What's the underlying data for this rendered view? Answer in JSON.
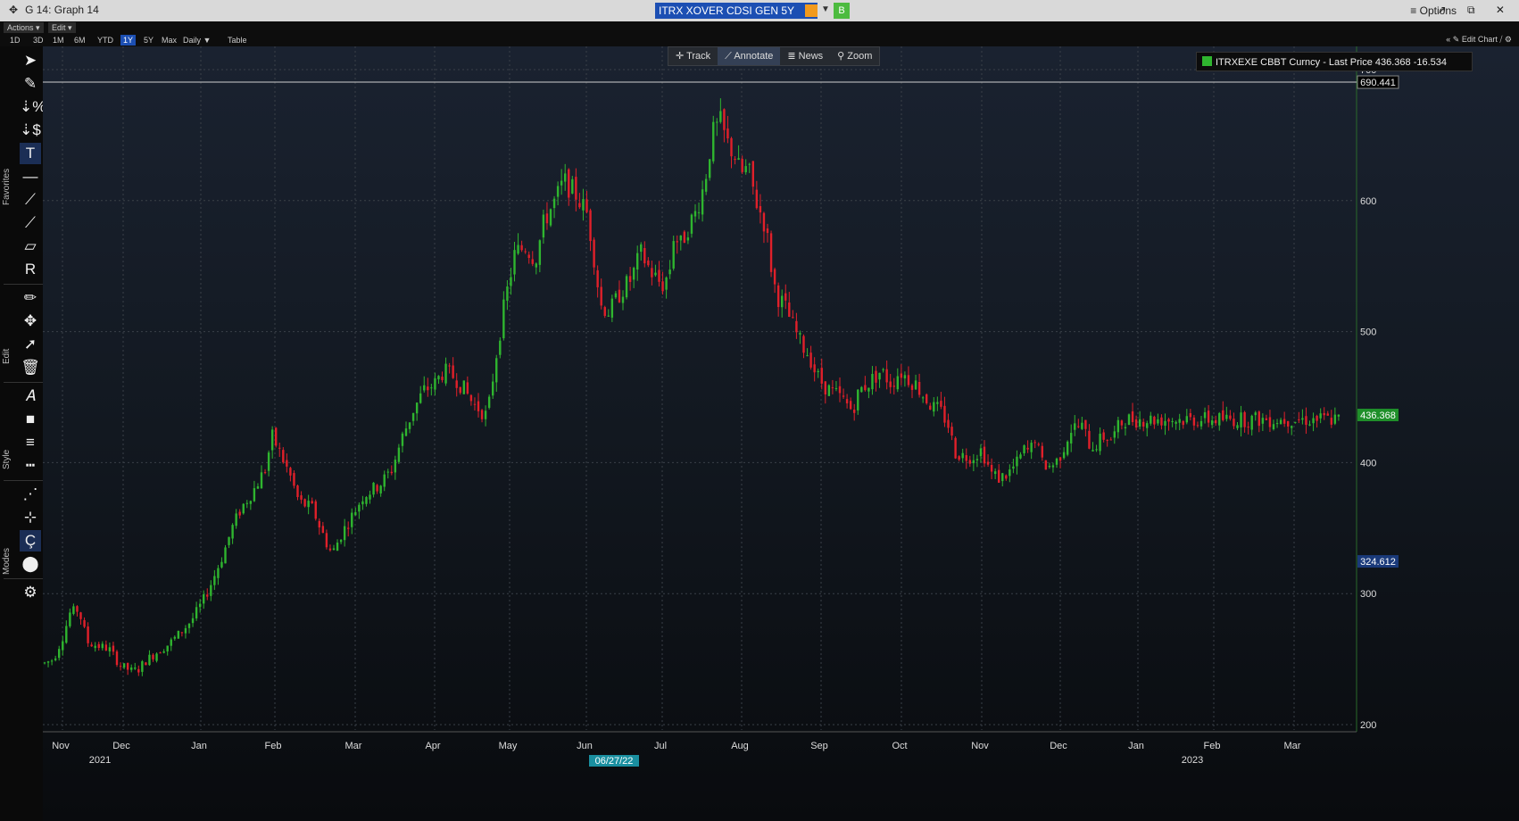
{
  "window": {
    "title": "G 14: Graph 14",
    "ticker": "ITRX XOVER CDSI GEN 5Y Corp",
    "b_label": "B",
    "options_label": "Options"
  },
  "menu": {
    "actions": "Actions ▾",
    "edit": "Edit ▾"
  },
  "timeframes": [
    "1D",
    "3D",
    "1M",
    "6M",
    "YTD",
    "1Y",
    "5Y",
    "Max",
    "Daily ▼",
    "Table"
  ],
  "timeframe_active": "1Y",
  "edit_chart_label": "Edit Chart",
  "chart_tools": {
    "track": "Track",
    "annotate": "Annotate",
    "news": "News",
    "zoom": "Zoom"
  },
  "sidebar": {
    "groups": [
      "Favorites",
      "Edit",
      "Style",
      "Modes"
    ]
  },
  "legend": {
    "text": "ITRXEXE CBBT Curncy - Last Price 436.368  -16.534",
    "color": "#2fb52f"
  },
  "colors": {
    "up": "#2fb52f",
    "down": "#e0202a",
    "last_tag": "#1f8f2a",
    "low_tag": "#1a3a7a"
  },
  "chart_data": {
    "type": "candlestick",
    "title": "",
    "ylim": [
      200,
      700
    ],
    "yticks": [
      700,
      600,
      500,
      400,
      300,
      200
    ],
    "months": [
      "Nov",
      "Dec",
      "Jan",
      "Feb",
      "Mar",
      "Apr",
      "May",
      "Jun",
      "Jul",
      "Aug",
      "Sep",
      "Oct",
      "Nov",
      "Dec",
      "Jan",
      "Feb",
      "Mar"
    ],
    "years": [
      {
        "label": "2021",
        "month_index": 0
      },
      {
        "label": "2023",
        "month_index": 15
      }
    ],
    "crosshair_date": "06/27/22",
    "max_line": 690.441,
    "max_label": "690.441",
    "last_price": 436.368,
    "last_label": "436.368",
    "low_label": 324.612,
    "low_label_text": "324.612",
    "anchors": [
      [
        0,
        247
      ],
      [
        10,
        250
      ],
      [
        22,
        270
      ],
      [
        28,
        285
      ],
      [
        38,
        288
      ],
      [
        48,
        263
      ],
      [
        60,
        260
      ],
      [
        72,
        258
      ],
      [
        85,
        245
      ],
      [
        97,
        241
      ],
      [
        105,
        242
      ],
      [
        112,
        248
      ],
      [
        125,
        255
      ],
      [
        140,
        262
      ],
      [
        152,
        270
      ],
      [
        165,
        280
      ],
      [
        178,
        295
      ],
      [
        188,
        310
      ],
      [
        200,
        330
      ],
      [
        210,
        350
      ],
      [
        220,
        365
      ],
      [
        235,
        380
      ],
      [
        247,
        395
      ],
      [
        255,
        420
      ],
      [
        262,
        410
      ],
      [
        275,
        390
      ],
      [
        285,
        370
      ],
      [
        300,
        365
      ],
      [
        315,
        340
      ],
      [
        322,
        330
      ],
      [
        332,
        345
      ],
      [
        345,
        360
      ],
      [
        357,
        375
      ],
      [
        369,
        380
      ],
      [
        378,
        385
      ],
      [
        389,
        395
      ],
      [
        401,
        420
      ],
      [
        413,
        440
      ],
      [
        425,
        455
      ],
      [
        437,
        460
      ],
      [
        447,
        470
      ],
      [
        460,
        465
      ],
      [
        471,
        455
      ],
      [
        480,
        445
      ],
      [
        489,
        440
      ],
      [
        496,
        435
      ],
      [
        505,
        478
      ],
      [
        515,
        520
      ],
      [
        527,
        560
      ],
      [
        539,
        565
      ],
      [
        550,
        555
      ],
      [
        560,
        585
      ],
      [
        572,
        600
      ],
      [
        582,
        615
      ],
      [
        595,
        605
      ],
      [
        608,
        590
      ],
      [
        615,
        560
      ],
      [
        623,
        520
      ],
      [
        633,
        515
      ],
      [
        645,
        530
      ],
      [
        657,
        540
      ],
      [
        668,
        560
      ],
      [
        680,
        545
      ],
      [
        692,
        535
      ],
      [
        700,
        545
      ],
      [
        705,
        575
      ],
      [
        712,
        565
      ],
      [
        721,
        580
      ],
      [
        729,
        590
      ],
      [
        739,
        612
      ],
      [
        748,
        650
      ],
      [
        757,
        660
      ],
      [
        764,
        645
      ],
      [
        773,
        635
      ],
      [
        780,
        620
      ],
      [
        788,
        625
      ],
      [
        797,
        600
      ],
      [
        808,
        580
      ],
      [
        815,
        545
      ],
      [
        820,
        528
      ],
      [
        829,
        520
      ],
      [
        838,
        505
      ],
      [
        848,
        490
      ],
      [
        857,
        482
      ],
      [
        864,
        468
      ],
      [
        872,
        460
      ],
      [
        880,
        455
      ],
      [
        891,
        450
      ],
      [
        905,
        440
      ],
      [
        913,
        455
      ],
      [
        925,
        462
      ],
      [
        937,
        470
      ],
      [
        949,
        460
      ],
      [
        958,
        470
      ],
      [
        966,
        465
      ],
      [
        976,
        460
      ],
      [
        986,
        450
      ],
      [
        995,
        442
      ],
      [
        1003,
        440
      ],
      [
        1012,
        430
      ],
      [
        1020,
        408
      ],
      [
        1030,
        405
      ],
      [
        1040,
        405
      ],
      [
        1050,
        410
      ],
      [
        1056,
        400
      ],
      [
        1060,
        392
      ],
      [
        1070,
        388
      ],
      [
        1080,
        392
      ],
      [
        1089,
        399
      ],
      [
        1098,
        410
      ],
      [
        1104,
        408
      ],
      [
        1110,
        420
      ],
      [
        1117,
        400
      ],
      [
        1125,
        397
      ],
      [
        1133,
        400
      ],
      [
        1141,
        410
      ],
      [
        1149,
        425
      ],
      [
        1157,
        428
      ],
      [
        1163,
        427
      ],
      [
        1172,
        412
      ],
      [
        1180,
        415
      ],
      [
        1187,
        420
      ],
      [
        1196,
        418
      ],
      [
        1203,
        427
      ],
      [
        1210,
        433
      ]
    ]
  }
}
